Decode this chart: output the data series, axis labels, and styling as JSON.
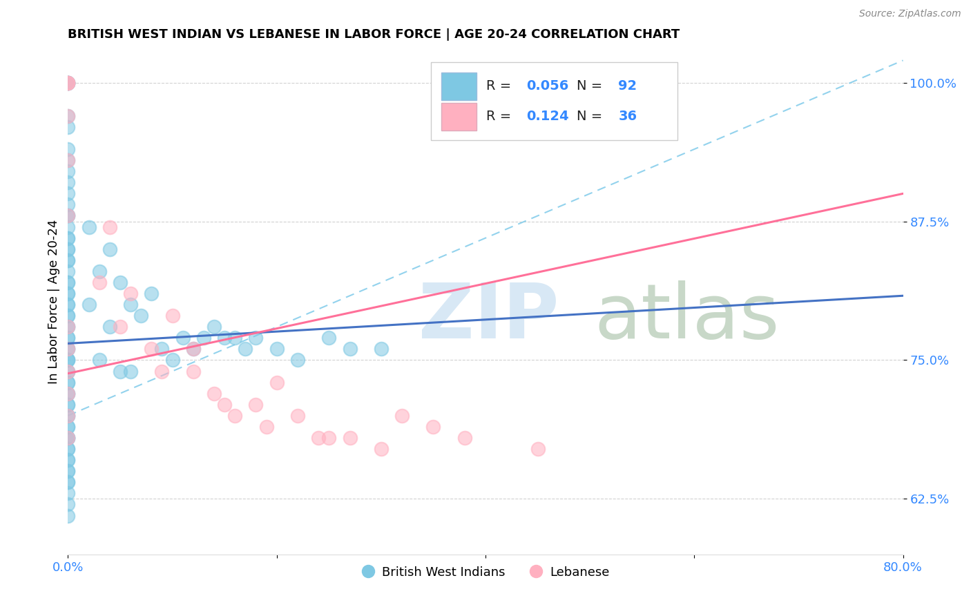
{
  "title": "BRITISH WEST INDIAN VS LEBANESE IN LABOR FORCE | AGE 20-24 CORRELATION CHART",
  "source": "Source: ZipAtlas.com",
  "ylabel": "In Labor Force | Age 20-24",
  "xlim": [
    0.0,
    0.8
  ],
  "ylim": [
    0.575,
    1.03
  ],
  "xticks": [
    0.0,
    0.2,
    0.4,
    0.6,
    0.8
  ],
  "xticklabels": [
    "0.0%",
    "",
    "",
    "",
    "80.0%"
  ],
  "yticks": [
    0.625,
    0.75,
    0.875,
    1.0
  ],
  "yticklabels": [
    "62.5%",
    "75.0%",
    "87.5%",
    "100.0%"
  ],
  "r_blue": 0.056,
  "n_blue": 92,
  "r_pink": 0.124,
  "n_pink": 36,
  "legend_label_blue": "British West Indians",
  "legend_label_pink": "Lebanese",
  "blue_scatter_color": "#7EC8E3",
  "pink_scatter_color": "#FFB0C0",
  "blue_line_color": "#4472C4",
  "pink_line_color": "#FF7099",
  "dashed_line_color": "#87CEEB",
  "watermark_zip_color": "#D8E8F5",
  "watermark_atlas_color": "#C8D8C8",
  "blue_points_x": [
    0.0,
    0.0,
    0.0,
    0.0,
    0.0,
    0.0,
    0.0,
    0.0,
    0.0,
    0.0,
    0.0,
    0.0,
    0.0,
    0.0,
    0.0,
    0.0,
    0.0,
    0.0,
    0.0,
    0.0,
    0.0,
    0.0,
    0.0,
    0.0,
    0.0,
    0.0,
    0.0,
    0.0,
    0.0,
    0.0,
    0.0,
    0.0,
    0.0,
    0.0,
    0.0,
    0.0,
    0.0,
    0.0,
    0.0,
    0.0,
    0.0,
    0.0,
    0.0,
    0.0,
    0.0,
    0.02,
    0.02,
    0.03,
    0.03,
    0.04,
    0.04,
    0.05,
    0.05,
    0.06,
    0.06,
    0.07,
    0.08,
    0.09,
    0.1,
    0.11,
    0.12,
    0.13,
    0.14,
    0.15,
    0.16,
    0.17,
    0.18,
    0.2,
    0.22,
    0.25,
    0.0,
    0.0,
    0.0,
    0.0,
    0.0,
    0.0,
    0.0,
    0.0,
    0.0,
    0.0,
    0.0,
    0.0,
    0.0,
    0.0,
    0.0,
    0.0,
    0.0,
    0.0,
    0.0,
    0.0,
    0.27,
    0.3
  ],
  "blue_points_y": [
    1.0,
    1.0,
    1.0,
    1.0,
    0.97,
    0.96,
    0.94,
    0.93,
    0.92,
    0.91,
    0.9,
    0.89,
    0.88,
    0.88,
    0.87,
    0.86,
    0.86,
    0.85,
    0.85,
    0.84,
    0.84,
    0.83,
    0.82,
    0.82,
    0.81,
    0.81,
    0.8,
    0.8,
    0.79,
    0.79,
    0.78,
    0.78,
    0.77,
    0.77,
    0.76,
    0.76,
    0.75,
    0.75,
    0.75,
    0.74,
    0.74,
    0.73,
    0.72,
    0.71,
    0.7,
    0.87,
    0.8,
    0.83,
    0.75,
    0.85,
    0.78,
    0.82,
    0.74,
    0.8,
    0.74,
    0.79,
    0.81,
    0.76,
    0.75,
    0.77,
    0.76,
    0.77,
    0.78,
    0.77,
    0.77,
    0.76,
    0.77,
    0.76,
    0.75,
    0.77,
    0.69,
    0.68,
    0.68,
    0.67,
    0.66,
    0.65,
    0.64,
    0.73,
    0.72,
    0.71,
    0.7,
    0.69,
    0.68,
    0.67,
    0.66,
    0.65,
    0.64,
    0.63,
    0.62,
    0.61,
    0.76,
    0.76
  ],
  "pink_points_x": [
    0.0,
    0.0,
    0.0,
    0.0,
    0.0,
    0.0,
    0.03,
    0.04,
    0.05,
    0.06,
    0.08,
    0.09,
    0.1,
    0.12,
    0.12,
    0.14,
    0.15,
    0.16,
    0.18,
    0.19,
    0.2,
    0.22,
    0.24,
    0.25,
    0.27,
    0.3,
    0.32,
    0.35,
    0.38,
    0.45,
    0.0,
    0.0,
    0.0,
    0.0,
    0.0,
    0.0
  ],
  "pink_points_y": [
    1.0,
    1.0,
    1.0,
    0.97,
    0.93,
    0.88,
    0.82,
    0.87,
    0.78,
    0.81,
    0.76,
    0.74,
    0.79,
    0.74,
    0.76,
    0.72,
    0.71,
    0.7,
    0.71,
    0.69,
    0.73,
    0.7,
    0.68,
    0.68,
    0.68,
    0.67,
    0.7,
    0.69,
    0.68,
    0.67,
    0.78,
    0.76,
    0.74,
    0.72,
    0.7,
    0.68
  ],
  "blue_trend_x": [
    0.0,
    0.8
  ],
  "blue_trend_y": [
    0.765,
    0.808
  ],
  "pink_trend_x": [
    0.0,
    0.8
  ],
  "pink_trend_y": [
    0.738,
    0.9
  ]
}
